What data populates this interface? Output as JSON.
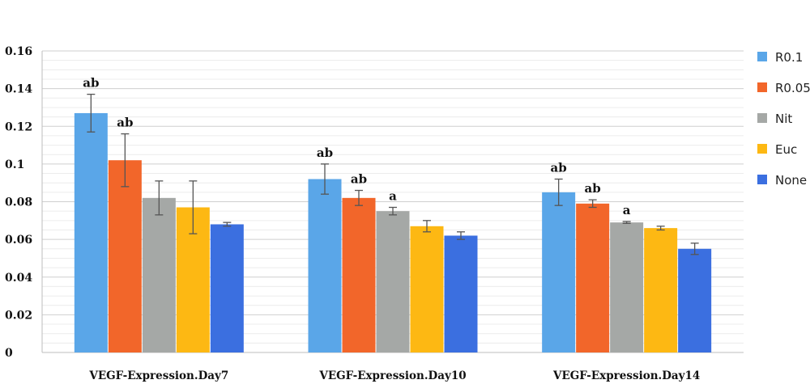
{
  "chart_data": {
    "type": "bar",
    "title": "",
    "xlabel": "",
    "ylabel": "",
    "ylim": [
      0,
      0.16
    ],
    "yticks": [
      0,
      0.02,
      0.04,
      0.06,
      0.08,
      0.1,
      0.12,
      0.14,
      0.16
    ],
    "ytick_labels": [
      "0",
      "0.02",
      "0.04",
      "0.06",
      "0.08",
      "0.1",
      "0.12",
      "0.14",
      "0.16"
    ],
    "grid": true,
    "legend_position": "right",
    "categories": [
      "VEGF-Expression.Day7",
      "VEGF-Expression.Day10",
      "VEGF-Expression.Day14"
    ],
    "series": [
      {
        "name": "R0.1",
        "color": "#5aa6e8",
        "values": [
          0.127,
          0.092,
          0.085
        ],
        "errors": [
          0.01,
          0.008,
          0.007
        ],
        "annotations": [
          "ab",
          "ab",
          "ab"
        ]
      },
      {
        "name": "R0.05",
        "color": "#f2662a",
        "values": [
          0.102,
          0.082,
          0.079
        ],
        "errors": [
          0.014,
          0.004,
          0.002
        ],
        "annotations": [
          "ab",
          "ab",
          "ab"
        ]
      },
      {
        "name": "Nit",
        "color": "#a5a8a6",
        "values": [
          0.082,
          0.075,
          0.069
        ],
        "errors": [
          0.009,
          0.002,
          0.0005
        ],
        "annotations": [
          "",
          "a",
          "a"
        ]
      },
      {
        "name": "Euc",
        "color": "#fdb813",
        "values": [
          0.077,
          0.067,
          0.066
        ],
        "errors": [
          0.014,
          0.003,
          0.001
        ],
        "annotations": [
          "",
          "",
          ""
        ]
      },
      {
        "name": "None",
        "color": "#3b6fe0",
        "values": [
          0.068,
          0.062,
          0.055
        ],
        "errors": [
          0.001,
          0.002,
          0.003
        ],
        "annotations": [
          "",
          "",
          ""
        ]
      }
    ]
  }
}
